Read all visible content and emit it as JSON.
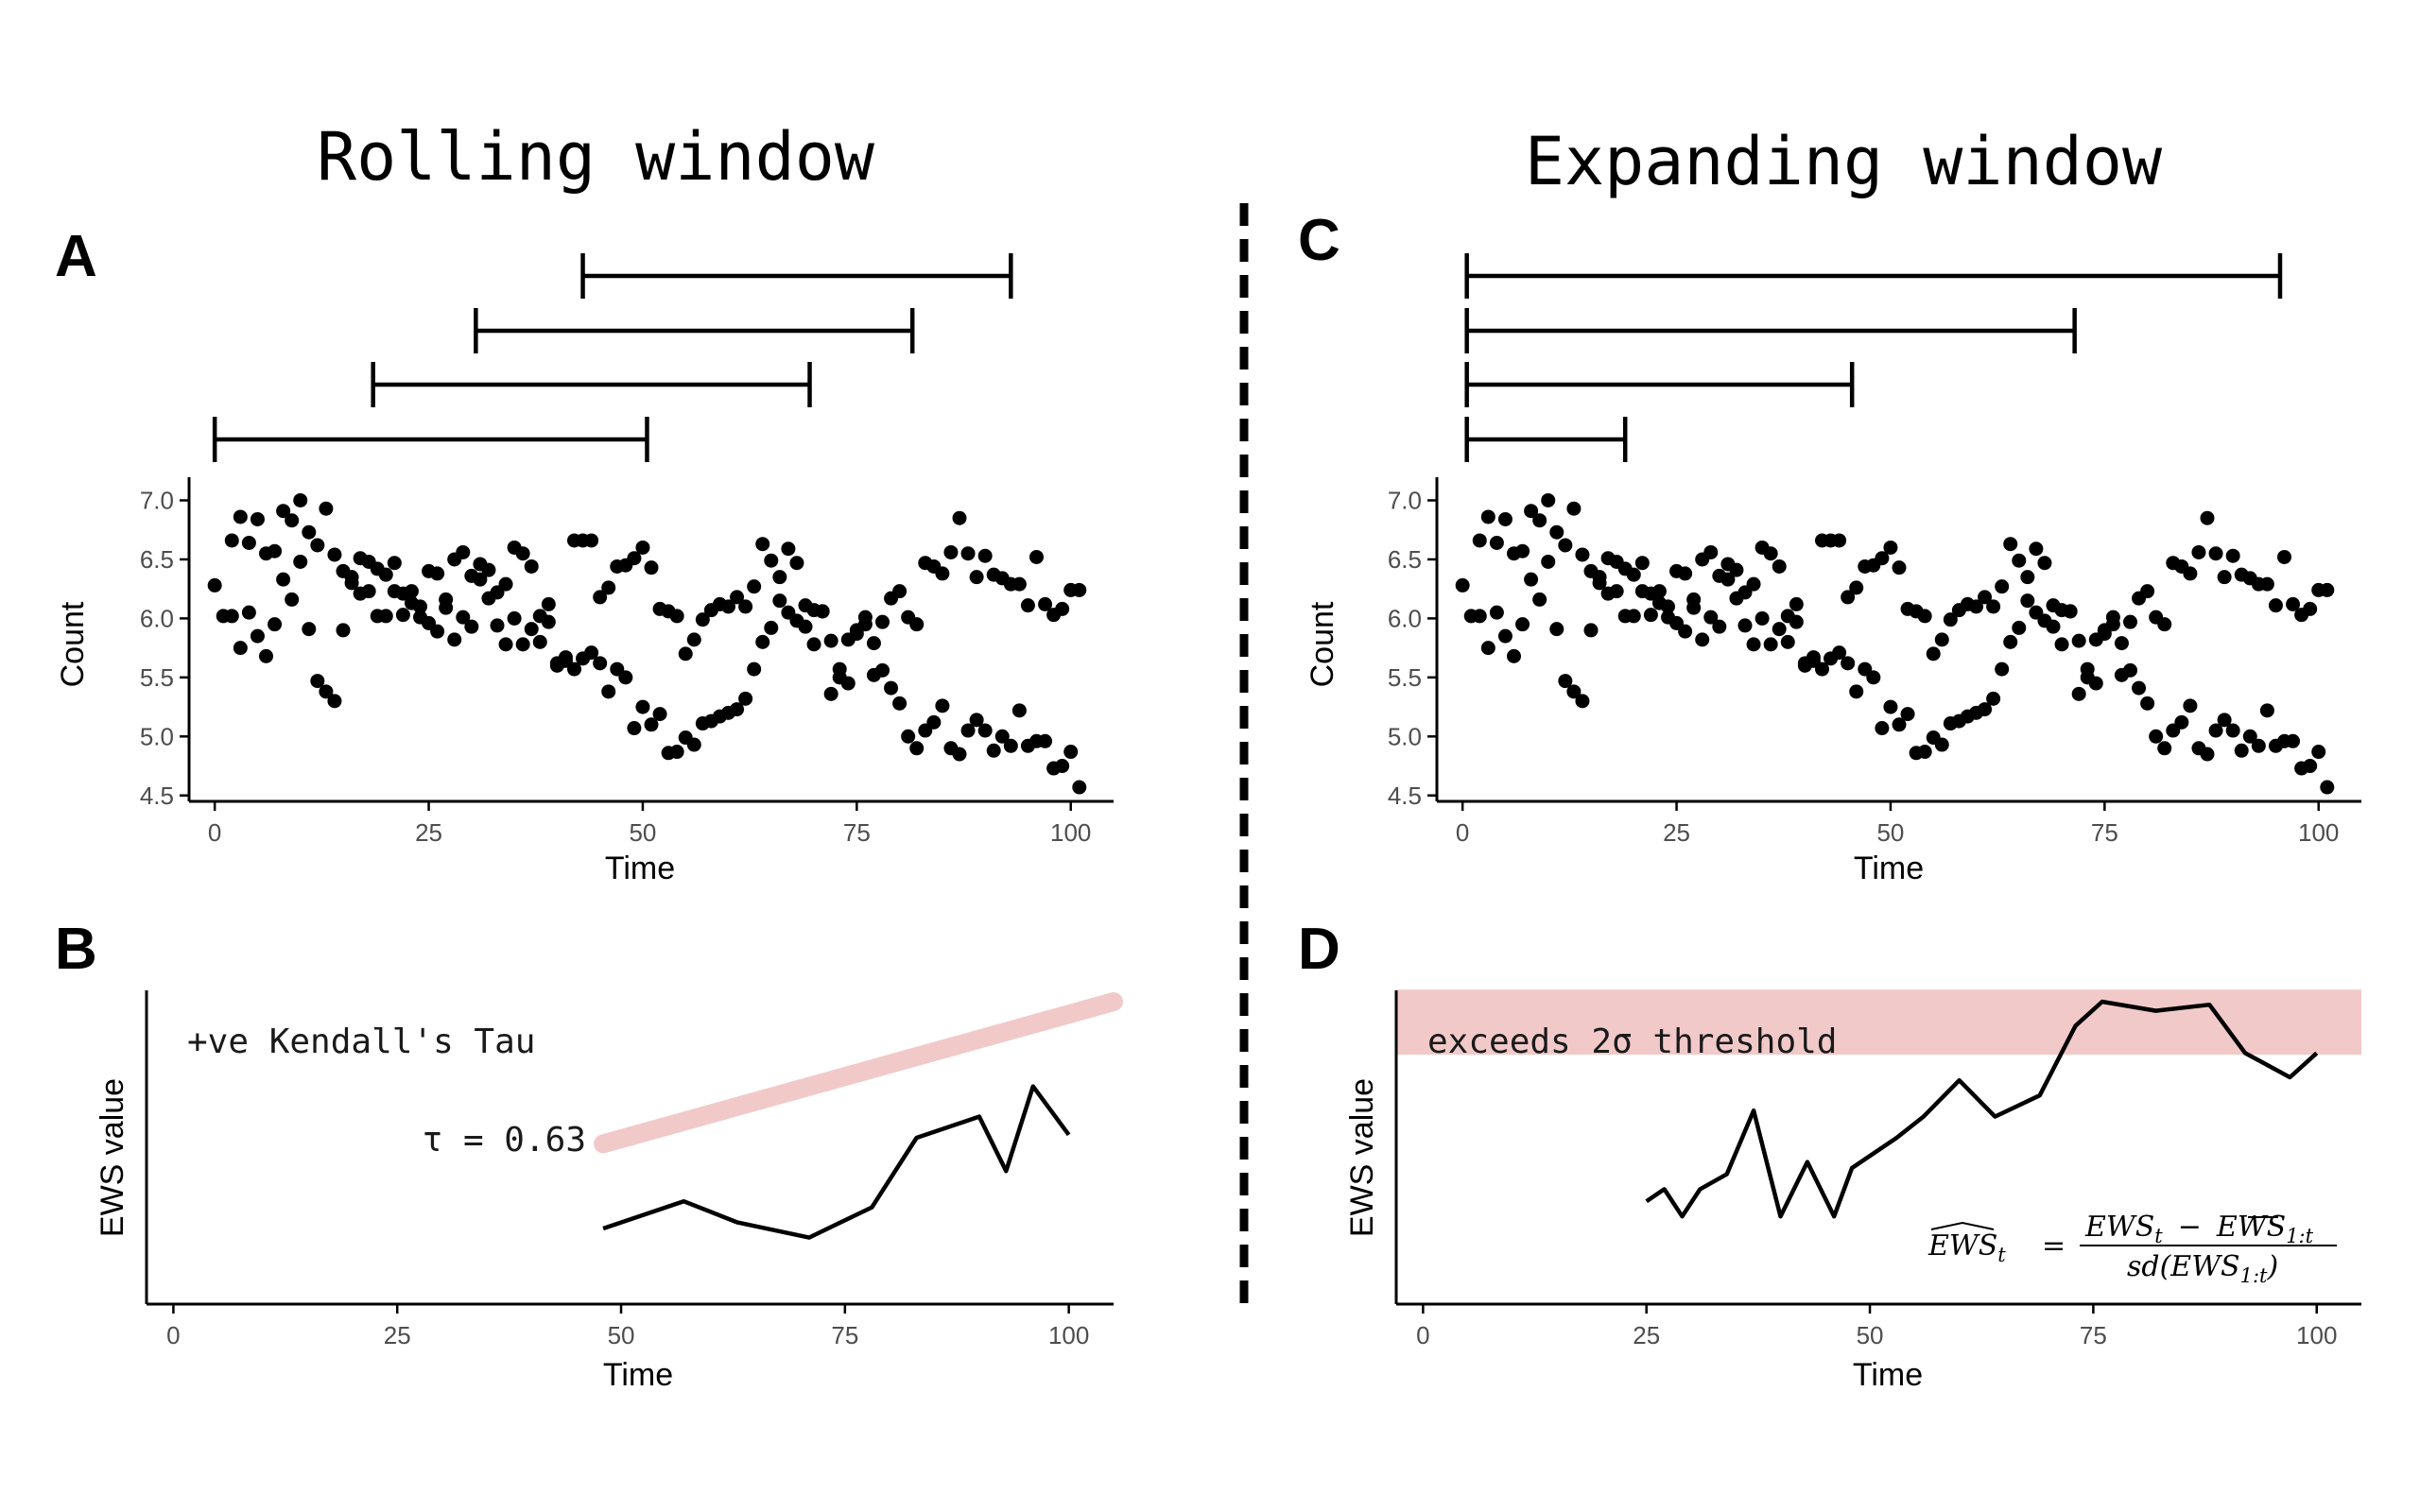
{
  "headings": {
    "left": "Rolling window",
    "right": "Expanding window"
  },
  "panels": {
    "A": {
      "letter": "A",
      "xlabel": "Time",
      "ylabel": "Count"
    },
    "B": {
      "letter": "B",
      "xlabel": "Time",
      "ylabel": "EWS value",
      "annotation": "+ve Kendall's Tau",
      "tau_label": "τ = 0.63"
    },
    "C": {
      "letter": "C",
      "xlabel": "Time",
      "ylabel": "Count"
    },
    "D": {
      "letter": "D",
      "xlabel": "Time",
      "ylabel": "EWS value",
      "band_label": "exceeds 2σ threshold"
    }
  },
  "colors": {
    "ink": "#000000",
    "highlight": "#f2c9c9",
    "axis_text": "#4d4d4d"
  },
  "chart_data": [
    {
      "panel": "A",
      "type": "scatter",
      "xlabel": "Time",
      "ylabel": "Count",
      "xlim": [
        -3,
        105
      ],
      "ylim": [
        4.45,
        7.1
      ],
      "xticks": [
        0,
        25,
        50,
        75,
        100
      ],
      "yticks": [
        4.5,
        5.0,
        5.5,
        6.0,
        6.5,
        7.0
      ],
      "ytick_labels": [
        "4.5",
        "5.0",
        "5.5",
        "6.0",
        "6.5",
        "7.0"
      ],
      "points": [
        [
          0,
          6.28
        ],
        [
          1,
          6.02
        ],
        [
          2,
          6.02
        ],
        [
          2,
          6.66
        ],
        [
          3,
          6.86
        ],
        [
          3,
          5.75
        ],
        [
          4,
          6.64
        ],
        [
          4,
          6.05
        ],
        [
          5,
          6.84
        ],
        [
          5,
          5.85
        ],
        [
          6,
          5.68
        ],
        [
          6,
          6.55
        ],
        [
          7,
          6.57
        ],
        [
          7,
          5.95
        ],
        [
          8,
          6.91
        ],
        [
          8,
          6.33
        ],
        [
          9,
          6.83
        ],
        [
          9,
          6.16
        ],
        [
          10,
          7.0
        ],
        [
          10,
          6.48
        ],
        [
          11,
          6.73
        ],
        [
          11,
          5.91
        ],
        [
          12,
          6.62
        ],
        [
          12,
          5.47
        ],
        [
          13,
          6.93
        ],
        [
          13,
          5.38
        ],
        [
          14,
          6.54
        ],
        [
          14,
          5.3
        ],
        [
          15,
          6.4
        ],
        [
          15,
          5.9
        ],
        [
          16,
          6.3
        ],
        [
          16,
          6.35
        ],
        [
          17,
          6.21
        ],
        [
          17,
          6.51
        ],
        [
          18,
          6.48
        ],
        [
          18,
          6.23
        ],
        [
          19,
          6.02
        ],
        [
          19,
          6.42
        ],
        [
          20,
          6.02
        ],
        [
          20,
          6.37
        ],
        [
          21,
          6.47
        ],
        [
          21,
          6.23
        ],
        [
          22,
          6.03
        ],
        [
          22,
          6.21
        ],
        [
          23,
          6.13
        ],
        [
          23,
          6.23
        ],
        [
          24,
          6.01
        ],
        [
          24,
          6.1
        ],
        [
          25,
          6.4
        ],
        [
          25,
          5.96
        ],
        [
          26,
          6.38
        ],
        [
          26,
          5.89
        ],
        [
          27,
          6.16
        ],
        [
          27,
          6.09
        ],
        [
          28,
          6.5
        ],
        [
          28,
          5.82
        ],
        [
          29,
          6.56
        ],
        [
          29,
          6.01
        ],
        [
          30,
          5.93
        ],
        [
          30,
          6.36
        ],
        [
          31,
          6.33
        ],
        [
          31,
          6.46
        ],
        [
          32,
          6.41
        ],
        [
          32,
          6.17
        ],
        [
          33,
          6.22
        ],
        [
          33,
          5.94
        ],
        [
          34,
          5.78
        ],
        [
          34,
          6.29
        ],
        [
          35,
          6.6
        ],
        [
          35,
          6.0
        ],
        [
          36,
          5.78
        ],
        [
          36,
          6.55
        ],
        [
          37,
          6.44
        ],
        [
          37,
          5.91
        ],
        [
          38,
          6.02
        ],
        [
          38,
          5.8
        ],
        [
          39,
          6.12
        ],
        [
          39,
          5.97
        ],
        [
          40,
          5.6
        ],
        [
          40,
          5.62
        ],
        [
          41,
          5.67
        ],
        [
          41,
          5.64
        ],
        [
          42,
          6.66
        ],
        [
          42,
          5.57
        ],
        [
          43,
          6.66
        ],
        [
          43,
          5.66
        ],
        [
          44,
          6.66
        ],
        [
          44,
          5.71
        ],
        [
          45,
          5.62
        ],
        [
          45,
          6.18
        ],
        [
          46,
          6.26
        ],
        [
          46,
          5.38
        ],
        [
          47,
          6.44
        ],
        [
          47,
          5.57
        ],
        [
          48,
          5.5
        ],
        [
          48,
          6.45
        ],
        [
          49,
          5.07
        ],
        [
          49,
          6.51
        ],
        [
          50,
          5.25
        ],
        [
          50,
          6.6
        ],
        [
          51,
          5.1
        ],
        [
          51,
          6.43
        ],
        [
          52,
          5.19
        ],
        [
          52,
          6.08
        ],
        [
          53,
          4.86
        ],
        [
          53,
          6.06
        ],
        [
          54,
          4.87
        ],
        [
          54,
          6.02
        ],
        [
          55,
          4.99
        ],
        [
          55,
          5.7
        ],
        [
          56,
          4.93
        ],
        [
          56,
          5.82
        ],
        [
          57,
          5.11
        ],
        [
          57,
          5.99
        ],
        [
          58,
          5.13
        ],
        [
          58,
          6.07
        ],
        [
          59,
          5.17
        ],
        [
          59,
          6.12
        ],
        [
          60,
          5.2
        ],
        [
          60,
          6.1
        ],
        [
          61,
          5.23
        ],
        [
          61,
          6.18
        ],
        [
          62,
          5.32
        ],
        [
          62,
          6.1
        ],
        [
          63,
          5.57
        ],
        [
          63,
          6.27
        ],
        [
          64,
          5.8
        ],
        [
          64,
          6.63
        ],
        [
          65,
          5.92
        ],
        [
          65,
          6.49
        ],
        [
          66,
          6.15
        ],
        [
          66,
          6.35
        ],
        [
          67,
          6.59
        ],
        [
          67,
          6.05
        ],
        [
          68,
          6.47
        ],
        [
          68,
          5.98
        ],
        [
          69,
          6.11
        ],
        [
          69,
          5.93
        ],
        [
          70,
          6.07
        ],
        [
          70,
          5.78
        ],
        [
          71,
          6.06
        ],
        [
          71,
          6.06
        ],
        [
          72,
          5.36
        ],
        [
          72,
          5.81
        ],
        [
          73,
          5.5
        ],
        [
          73,
          5.57
        ],
        [
          74,
          5.82
        ],
        [
          74,
          5.45
        ],
        [
          75,
          5.87
        ],
        [
          75,
          5.9
        ],
        [
          76,
          5.95
        ],
        [
          76,
          6.01
        ],
        [
          77,
          5.52
        ],
        [
          77,
          5.79
        ],
        [
          78,
          5.56
        ],
        [
          78,
          5.97
        ],
        [
          79,
          5.41
        ],
        [
          79,
          6.17
        ],
        [
          80,
          5.28
        ],
        [
          80,
          6.23
        ],
        [
          81,
          5.0
        ],
        [
          81,
          6.01
        ],
        [
          82,
          4.9
        ],
        [
          82,
          5.95
        ],
        [
          83,
          5.05
        ],
        [
          83,
          6.47
        ],
        [
          84,
          5.12
        ],
        [
          84,
          6.44
        ],
        [
          85,
          5.26
        ],
        [
          85,
          6.38
        ],
        [
          86,
          4.9
        ],
        [
          86,
          6.56
        ],
        [
          87,
          4.85
        ],
        [
          87,
          6.85
        ],
        [
          88,
          5.05
        ],
        [
          88,
          6.55
        ],
        [
          89,
          5.14
        ],
        [
          89,
          6.35
        ],
        [
          90,
          5.05
        ],
        [
          90,
          6.53
        ],
        [
          91,
          4.88
        ],
        [
          91,
          6.37
        ],
        [
          92,
          5.0
        ],
        [
          92,
          6.34
        ],
        [
          93,
          4.92
        ],
        [
          93,
          6.29
        ],
        [
          94,
          5.22
        ],
        [
          94,
          6.29
        ],
        [
          95,
          4.92
        ],
        [
          95,
          6.11
        ],
        [
          96,
          4.96
        ],
        [
          96,
          6.52
        ],
        [
          97,
          4.96
        ],
        [
          97,
          6.12
        ],
        [
          98,
          4.73
        ],
        [
          98,
          6.03
        ],
        [
          99,
          4.75
        ],
        [
          99,
          6.08
        ],
        [
          100,
          4.87
        ],
        [
          100,
          6.24
        ],
        [
          101,
          4.57
        ],
        [
          101,
          6.24
        ]
      ]
    },
    {
      "panel": "A-windows",
      "type": "interval",
      "description_of": "rolling window extents",
      "intervals": [
        [
          0,
          50.5
        ],
        [
          18.5,
          69.5
        ],
        [
          30.5,
          81.5
        ],
        [
          43,
          93
        ]
      ]
    },
    {
      "panel": "B",
      "type": "line",
      "xlabel": "Time",
      "ylabel": "EWS value",
      "xlim": [
        -3,
        105
      ],
      "xticks": [
        0,
        25,
        50,
        75,
        100
      ],
      "x": [
        48,
        57,
        63,
        71,
        78,
        83,
        90,
        93,
        96,
        100
      ],
      "y": [
        0.25,
        0.34,
        0.27,
        0.22,
        0.32,
        0.55,
        0.62,
        0.44,
        0.72,
        0.56
      ],
      "trend_x": [
        48,
        105
      ],
      "trend_y": [
        0.53,
        1.0
      ]
    },
    {
      "panel": "C",
      "type": "scatter",
      "xlabel": "Time",
      "ylabel": "Count",
      "xlim": [
        -3,
        105
      ],
      "ylim": [
        4.45,
        7.1
      ],
      "xticks": [
        0,
        25,
        50,
        75,
        100
      ],
      "yticks": [
        4.5,
        5.0,
        5.5,
        6.0,
        6.5,
        7.0
      ],
      "ytick_labels": [
        "4.5",
        "5.0",
        "5.5",
        "6.0",
        "6.5",
        "7.0"
      ],
      "same_points_as": "A"
    },
    {
      "panel": "C-windows",
      "type": "interval",
      "description_of": "expanding window extents",
      "intervals": [
        [
          0.5,
          19
        ],
        [
          0.5,
          45.5
        ],
        [
          0.5,
          71.5
        ],
        [
          0.5,
          95.5
        ]
      ]
    },
    {
      "panel": "D",
      "type": "line",
      "xlabel": "Time",
      "ylabel": "EWS value",
      "xlim": [
        -3,
        105
      ],
      "xticks": [
        0,
        25,
        50,
        75,
        100
      ],
      "x": [
        25,
        27,
        29,
        31,
        34,
        37,
        40,
        43,
        46,
        48,
        53,
        56,
        60,
        64,
        69,
        73,
        76,
        82,
        88,
        92,
        97,
        100
      ],
      "y": [
        0.34,
        0.38,
        0.29,
        0.38,
        0.43,
        0.64,
        0.29,
        0.47,
        0.29,
        0.45,
        0.55,
        0.62,
        0.74,
        0.62,
        0.69,
        0.92,
        1.0,
        0.97,
        0.99,
        0.83,
        0.75,
        0.83
      ],
      "threshold_band": [
        0.825,
        1.04
      ]
    }
  ],
  "formula": {
    "lhs": "EWS",
    "lhs_sub": "t",
    "equals": "=",
    "num_a": "EWS",
    "num_a_sub": "t",
    "minus": "−",
    "num_b": "EWS",
    "num_b_sub": "1:t",
    "den": "sd(EWS",
    "den_sub": "1:t",
    "den_close": ")"
  }
}
